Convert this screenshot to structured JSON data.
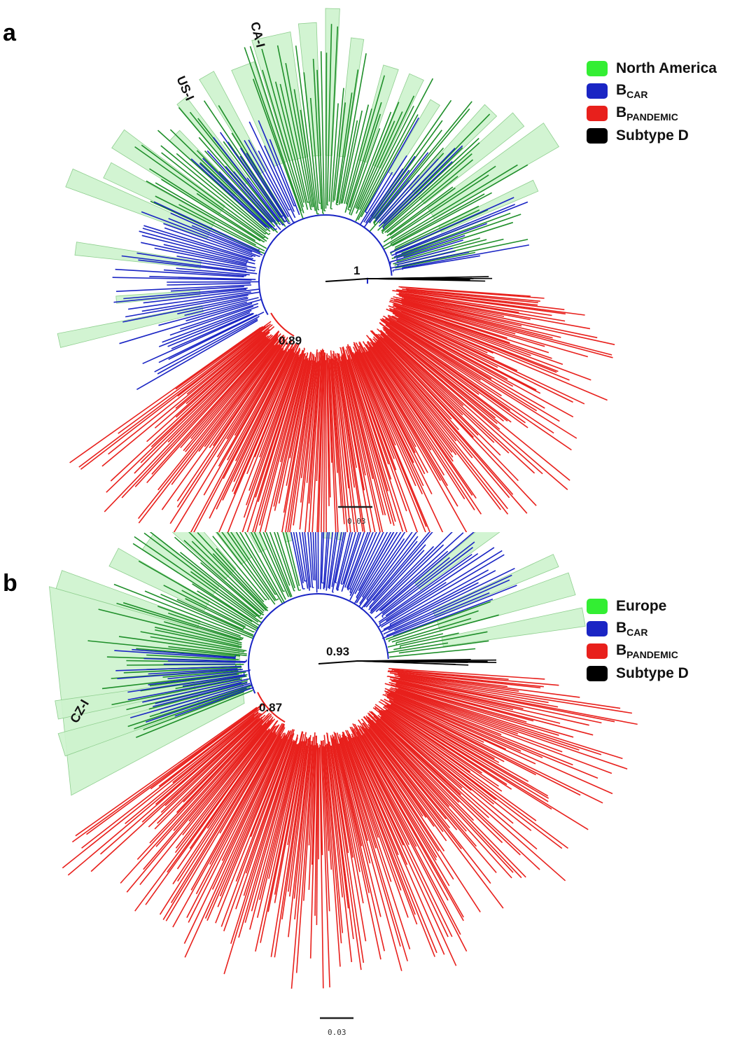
{
  "colors": {
    "north_america": "#1f8f2a",
    "europe": "#1f8f2a",
    "highlight": "#cdf3cd",
    "highlight_stroke": "#8fcf8f",
    "legend_green": "#33ee33",
    "b_car": "#1a25c4",
    "b_pandemic": "#e8201c",
    "subtype_d": "#000000"
  },
  "panels": [
    {
      "letter": "a",
      "legend": [
        {
          "key": "north_america",
          "label": "North America",
          "sub": ""
        },
        {
          "key": "b_car",
          "label": "B",
          "sub": "CAR"
        },
        {
          "key": "b_pandemic",
          "label": "B",
          "sub": "PANDEMIC"
        },
        {
          "key": "subtype_d",
          "label": "Subtype D",
          "sub": ""
        }
      ],
      "node_labels": [
        "1",
        "0.89"
      ],
      "clade_labels": [
        "US-I",
        "CA-I"
      ],
      "scale_label": "0.03"
    },
    {
      "letter": "b",
      "legend": [
        {
          "key": "europe",
          "label": "Europe",
          "sub": ""
        },
        {
          "key": "b_car",
          "label": "B",
          "sub": "CAR"
        },
        {
          "key": "b_pandemic",
          "label": "B",
          "sub": "PANDEMIC"
        },
        {
          "key": "subtype_d",
          "label": "Subtype D",
          "sub": ""
        }
      ],
      "node_labels": [
        "0.93",
        "0.87"
      ],
      "clade_labels": [
        "CZ-I"
      ],
      "scale_label": "0.03"
    }
  ]
}
